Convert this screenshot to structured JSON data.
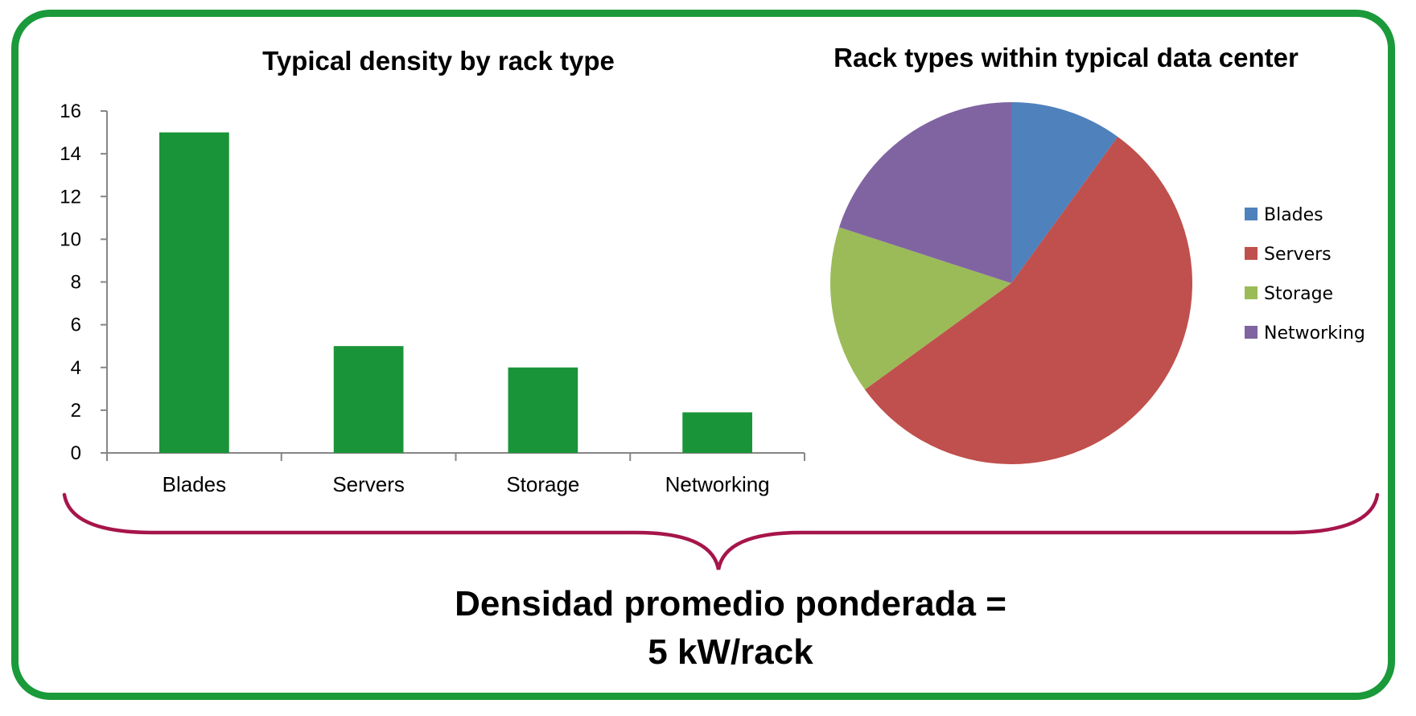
{
  "chart_data": [
    {
      "type": "bar",
      "title": "Typical density by rack type",
      "categories": [
        "Blades",
        "Servers",
        "Storage",
        "Networking"
      ],
      "values": [
        15,
        5,
        4,
        1.9
      ],
      "ylim": [
        0,
        16
      ],
      "yticks": [
        "0",
        "2",
        "4",
        "6",
        "8",
        "10",
        "12",
        "14",
        "16"
      ],
      "bar_color": "#1a9438",
      "grid": false,
      "legend": "none"
    },
    {
      "type": "pie",
      "title": "Rack types within typical data center",
      "categories": [
        "Blades",
        "Servers",
        "Storage",
        "Networking"
      ],
      "values": [
        10,
        55,
        15,
        20
      ],
      "colors": [
        "#4f81bd",
        "#c0504d",
        "#9bbb59",
        "#8064a2"
      ],
      "legend": "right"
    }
  ],
  "summary": {
    "line1": "Densidad promedio ponderada =",
    "line2": "5 kW/rack"
  },
  "brace_color": "#a6154a",
  "frame_color": "#1a9a3a"
}
